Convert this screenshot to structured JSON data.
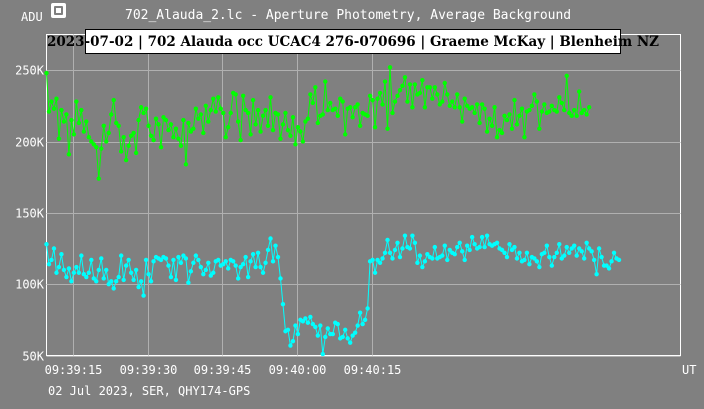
{
  "window": {
    "title": "702_Alauda_2.lc - Aperture Photometry, Average Background",
    "icon": "app-icon"
  },
  "footer": "02 Jul 2023, SER, QHY174-GPS",
  "chart_data": {
    "type": "line",
    "title": "2023-07-02 | 702 Alauda occ UCAC4 276-070696 | Graeme McKay | Blenheim NZ",
    "ylabel": "ADU",
    "xlabel": "UT",
    "ylim": [
      50000,
      275000
    ],
    "xlim": [
      9.65,
      137.0
    ],
    "xticks": [
      {
        "value": 15,
        "label": "09:39:15"
      },
      {
        "value": 30,
        "label": "09:39:30"
      },
      {
        "value": 45,
        "label": "09:39:45"
      },
      {
        "value": 60,
        "label": "09:40:00"
      },
      {
        "value": 75,
        "label": "09:40:15"
      }
    ],
    "yticks": [
      {
        "value": 50000,
        "label": "50K"
      },
      {
        "value": 100000,
        "label": "100K"
      },
      {
        "value": 150000,
        "label": "150K"
      },
      {
        "value": 200000,
        "label": "200K"
      },
      {
        "value": 250000,
        "label": "250K"
      }
    ],
    "grid": true,
    "series": [
      {
        "color": "#00ff00",
        "x_start": 9.65,
        "x_step": 0.5,
        "values": [
          248000,
          221000,
          228000,
          223000,
          230000,
          202000,
          222000,
          214000,
          219000,
          191000,
          215000,
          205000,
          228000,
          213000,
          222000,
          207000,
          214000,
          203000,
          200000,
          198000,
          196000,
          174000,
          195000,
          211000,
          200000,
          206000,
          219000,
          229000,
          213000,
          211000,
          193000,
          203000,
          187000,
          197000,
          204000,
          206000,
          192000,
          215000,
          224000,
          220000,
          223000,
          211000,
          204000,
          201000,
          216000,
          212000,
          196000,
          217000,
          215000,
          208000,
          212000,
          203000,
          209000,
          202000,
          197000,
          215000,
          184000,
          213000,
          207000,
          209000,
          223000,
          216000,
          219000,
          206000,
          225000,
          214000,
          222000,
          230000,
          221000,
          231000,
          223000,
          220000,
          203000,
          210000,
          220000,
          234000,
          233000,
          214000,
          201000,
          232000,
          222000,
          220000,
          205000,
          229000,
          212000,
          222000,
          207000,
          218000,
          222000,
          211000,
          231000,
          208000,
          220000,
          219000,
          202000,
          212000,
          220000,
          208000,
          204000,
          217000,
          198000,
          210000,
          207000,
          200000,
          214000,
          216000,
          233000,
          227000,
          238000,
          213000,
          218000,
          219000,
          242000,
          222000,
          227000,
          222000,
          223000,
          218000,
          230000,
          228000,
          205000,
          223000,
          224000,
          217000,
          224000,
          226000,
          211000,
          220000,
          219000,
          218000,
          232000,
          229000,
          210000,
          230000,
          234000,
          226000,
          242000,
          209000,
          252000,
          220000,
          228000,
          232000,
          236000,
          239000,
          245000,
          228000,
          240000,
          224000,
          240000,
          233000,
          234000,
          243000,
          224000,
          238000,
          238000,
          230000,
          238000,
          233000,
          226000,
          228000,
          241000,
          233000,
          225000,
          228000,
          224000,
          233000,
          224000,
          214000,
          230000,
          225000,
          223000,
          224000,
          220000,
          226000,
          213000,
          226000,
          223000,
          207000,
          216000,
          211000,
          224000,
          203000,
          208000,
          206000,
          218000,
          215000,
          219000,
          209000,
          229000,
          212000,
          218000,
          223000,
          203000,
          221000,
          222000,
          225000,
          233000,
          228000,
          209000,
          221000,
          226000,
          220000,
          221000,
          225000,
          222000,
          221000,
          231000,
          227000,
          222000,
          246000,
          220000,
          218000,
          222000,
          218000,
          235000,
          220000,
          222000,
          219000,
          224000
        ]
      },
      {
        "color": "#00ffff",
        "x_start": 9.65,
        "x_step": 0.5,
        "values": [
          128000,
          114000,
          117000,
          125000,
          108000,
          112000,
          121000,
          110000,
          105000,
          111000,
          102000,
          108000,
          112000,
          108000,
          120000,
          107000,
          105000,
          108000,
          117000,
          104000,
          102000,
          110000,
          118000,
          104000,
          110000,
          100000,
          102000,
          97000,
          102000,
          105000,
          120000,
          103000,
          113000,
          117000,
          108000,
          103000,
          110000,
          98000,
          102000,
          92000,
          117000,
          107000,
          102000,
          116000,
          119000,
          118000,
          117000,
          119000,
          118000,
          113000,
          105000,
          117000,
          103000,
          119000,
          115000,
          120000,
          118000,
          101000,
          109000,
          115000,
          120000,
          117000,
          112000,
          107000,
          110000,
          115000,
          106000,
          108000,
          116000,
          117000,
          113000,
          114000,
          116000,
          111000,
          117000,
          116000,
          113000,
          104000,
          112000,
          114000,
          119000,
          105000,
          116000,
          121000,
          112000,
          122000,
          112000,
          108000,
          115000,
          124000,
          132000,
          116000,
          127000,
          119000,
          104000,
          86000,
          67000,
          68000,
          57000,
          60000,
          71000,
          65000,
          75000,
          74000,
          76000,
          73000,
          77000,
          72000,
          70000,
          64000,
          71000,
          51000,
          63000,
          69000,
          65000,
          65000,
          73000,
          72000,
          62000,
          63000,
          68000,
          62000,
          59000,
          64000,
          66000,
          71000,
          80000,
          72000,
          75000,
          83000,
          116000,
          117000,
          108000,
          117000,
          115000,
          118000,
          122000,
          131000,
          122000,
          118000,
          124000,
          129000,
          119000,
          125000,
          134000,
          126000,
          125000,
          134000,
          129000,
          115000,
          120000,
          112000,
          116000,
          121000,
          119000,
          118000,
          126000,
          118000,
          119000,
          120000,
          127000,
          117000,
          124000,
          122000,
          121000,
          126000,
          129000,
          123000,
          117000,
          127000,
          124000,
          133000,
          128000,
          125000,
          126000,
          133000,
          126000,
          134000,
          128000,
          127000,
          128000,
          129000,
          125000,
          124000,
          122000,
          119000,
          128000,
          124000,
          126000,
          118000,
          122000,
          116000,
          117000,
          122000,
          114000,
          119000,
          118000,
          116000,
          112000,
          121000,
          122000,
          127000,
          119000,
          113000,
          119000,
          122000,
          128000,
          118000,
          120000,
          126000,
          122000,
          125000,
          127000,
          120000,
          125000,
          123000,
          118000,
          129000,
          125000,
          123000,
          117000,
          107000,
          125000,
          119000,
          113000,
          113000,
          111000,
          116000,
          122000,
          118000,
          117000
        ]
      }
    ]
  }
}
